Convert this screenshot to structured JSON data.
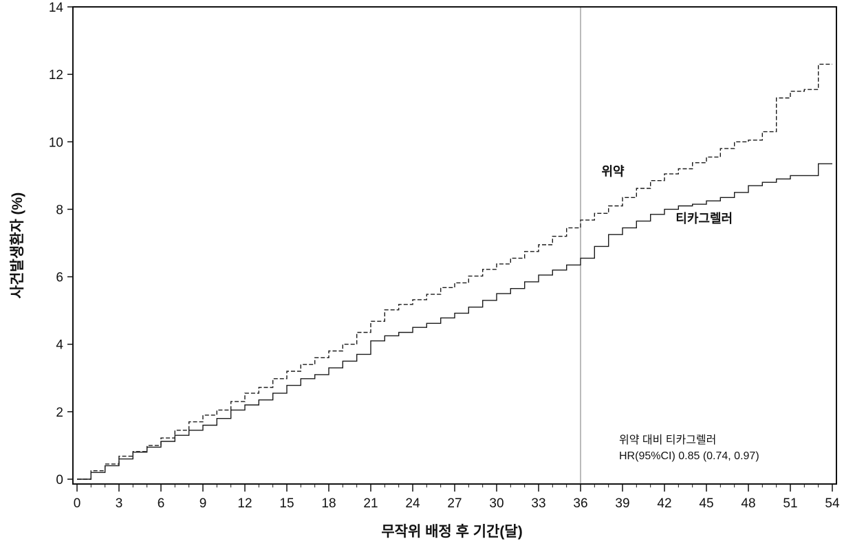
{
  "chart_data": {
    "type": "line",
    "title": "",
    "xlabel": "무작위 배정 후 기간(달)",
    "ylabel": "사건발생환자 (%)",
    "xlim": [
      0,
      54
    ],
    "ylim": [
      0,
      14
    ],
    "xticks": [
      0,
      3,
      6,
      9,
      12,
      15,
      18,
      21,
      24,
      27,
      30,
      33,
      36,
      39,
      42,
      45,
      48,
      51,
      54
    ],
    "yticks": [
      0,
      2,
      4,
      6,
      8,
      10,
      12,
      14
    ],
    "minor_x_step": 1,
    "grid": false,
    "reference_line_x": 36,
    "series": [
      {
        "name": "위약",
        "style": "dashed",
        "color": "#1a1a1a",
        "x": [
          0,
          1,
          2,
          3,
          4,
          5,
          6,
          7,
          8,
          9,
          10,
          11,
          12,
          13,
          14,
          15,
          16,
          17,
          18,
          19,
          20,
          21,
          22,
          23,
          24,
          25,
          26,
          27,
          28,
          29,
          30,
          31,
          32,
          33,
          34,
          35,
          36,
          37,
          38,
          39,
          40,
          41,
          42,
          43,
          44,
          45,
          46,
          47,
          48,
          49,
          50,
          51,
          52,
          53,
          54
        ],
        "y": [
          0,
          0.25,
          0.45,
          0.68,
          0.82,
          1.0,
          1.22,
          1.45,
          1.7,
          1.9,
          2.05,
          2.3,
          2.55,
          2.72,
          2.98,
          3.2,
          3.4,
          3.6,
          3.8,
          4.0,
          4.35,
          4.68,
          5.02,
          5.18,
          5.32,
          5.48,
          5.68,
          5.82,
          6.02,
          6.22,
          6.38,
          6.55,
          6.75,
          6.95,
          7.2,
          7.45,
          7.68,
          7.88,
          8.1,
          8.35,
          8.62,
          8.85,
          9.05,
          9.2,
          9.38,
          9.55,
          9.8,
          10.0,
          10.05,
          10.3,
          11.3,
          11.5,
          11.55,
          12.3,
          12.3
        ]
      },
      {
        "name": "티카그렐러",
        "style": "solid",
        "color": "#1a1a1a",
        "x": [
          0,
          1,
          2,
          3,
          4,
          5,
          6,
          7,
          8,
          9,
          10,
          11,
          12,
          13,
          14,
          15,
          16,
          17,
          18,
          19,
          20,
          21,
          22,
          23,
          24,
          25,
          26,
          27,
          28,
          29,
          30,
          31,
          32,
          33,
          34,
          35,
          36,
          37,
          38,
          39,
          40,
          41,
          42,
          43,
          44,
          45,
          46,
          47,
          48,
          49,
          50,
          51,
          52,
          53,
          54
        ],
        "y": [
          0,
          0.2,
          0.4,
          0.6,
          0.8,
          0.95,
          1.12,
          1.3,
          1.45,
          1.6,
          1.8,
          2.05,
          2.2,
          2.35,
          2.55,
          2.78,
          2.98,
          3.1,
          3.3,
          3.5,
          3.7,
          4.1,
          4.25,
          4.35,
          4.5,
          4.62,
          4.78,
          4.92,
          5.1,
          5.3,
          5.5,
          5.65,
          5.85,
          6.05,
          6.2,
          6.35,
          6.55,
          6.9,
          7.25,
          7.45,
          7.65,
          7.85,
          8.0,
          8.1,
          8.15,
          8.25,
          8.35,
          8.5,
          8.7,
          8.8,
          8.9,
          9.0,
          9.0,
          9.35,
          9.35
        ]
      }
    ],
    "series_labels": [
      {
        "text": "위약",
        "x": 37.5,
        "y": 9.0
      },
      {
        "text": "티카그렐러",
        "x": 42.8,
        "y": 7.6
      }
    ],
    "annotation": {
      "line1": "위약 대비 티카그렐러",
      "line2": "HR(95%CI) 0.85 (0.74, 0.97)"
    }
  }
}
